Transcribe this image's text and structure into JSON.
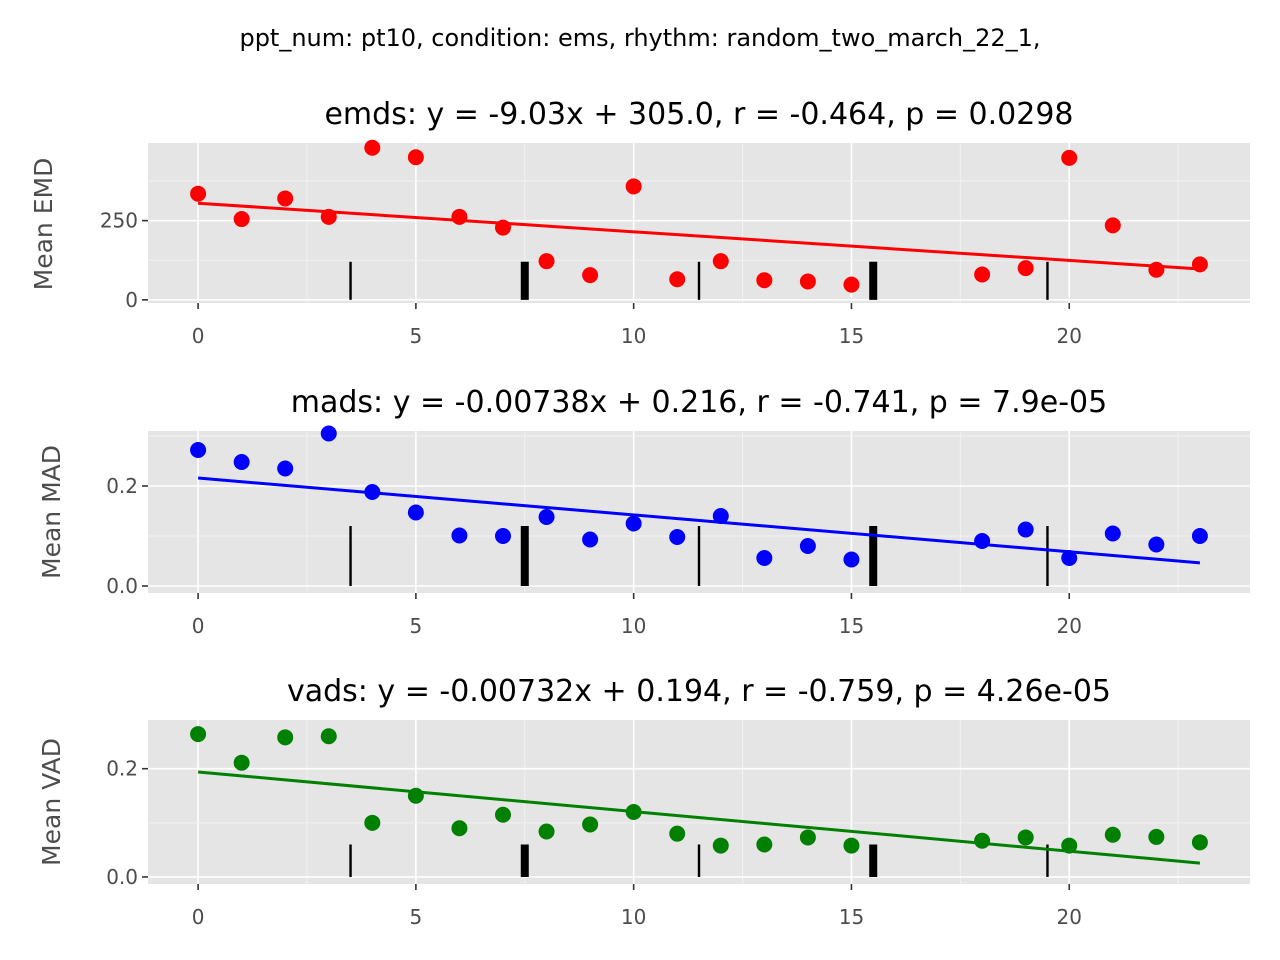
{
  "suptitle": "ppt_num: pt10, condition: ems, rhythm: random_two_march_22_1,",
  "chart_data": [
    {
      "type": "scatter",
      "title": "emds: y = -9.03x + 305.0, r = -0.464, p = 0.0298",
      "ylabel": "Mean EMD",
      "color": "#ff0000",
      "x": [
        0,
        1,
        2,
        3,
        4,
        5,
        6,
        7,
        8,
        9,
        10,
        11,
        12,
        13,
        14,
        15,
        18,
        19,
        20,
        21,
        22,
        23
      ],
      "y": [
        335,
        255,
        320,
        262,
        480,
        450,
        262,
        228,
        122,
        78,
        358,
        65,
        122,
        62,
        58,
        48,
        80,
        100,
        448,
        235,
        95,
        112
      ],
      "fit": {
        "slope": -9.03,
        "intercept": 305.0
      },
      "xlim": [
        -1.15,
        24.15
      ],
      "ylim": [
        -10,
        495
      ],
      "xticks": [
        0,
        5,
        10,
        15,
        20
      ],
      "yticks": [
        0,
        250
      ],
      "ytick_labels": [
        "0",
        "250"
      ],
      "markers": [
        {
          "x": 3.5,
          "height": 120,
          "weight": "thin"
        },
        {
          "x": 7.5,
          "height": 120,
          "weight": "thick"
        },
        {
          "x": 11.5,
          "height": 120,
          "weight": "thin"
        },
        {
          "x": 15.5,
          "height": 120,
          "weight": "thick"
        },
        {
          "x": 19.5,
          "height": 120,
          "weight": "thin"
        }
      ]
    },
    {
      "type": "scatter",
      "title": "mads: y = -0.00738x + 0.216, r = -0.741, p = 7.9e-05",
      "ylabel": "Mean MAD",
      "color": "#0000ff",
      "x": [
        0,
        1,
        2,
        3,
        4,
        5,
        6,
        7,
        8,
        9,
        10,
        11,
        12,
        13,
        14,
        15,
        18,
        19,
        20,
        21,
        22,
        23
      ],
      "y": [
        0.272,
        0.248,
        0.235,
        0.305,
        0.188,
        0.147,
        0.101,
        0.1,
        0.138,
        0.093,
        0.125,
        0.098,
        0.14,
        0.056,
        0.08,
        0.053,
        0.09,
        0.113,
        0.056,
        0.105,
        0.083,
        0.1
      ],
      "fit": {
        "slope": -0.00738,
        "intercept": 0.216
      },
      "xlim": [
        -1.15,
        24.15
      ],
      "ylim": [
        -0.014,
        0.31
      ],
      "xticks": [
        0,
        5,
        10,
        15,
        20
      ],
      "yticks": [
        0,
        0.2
      ],
      "ytick_labels": [
        "0.0",
        "0.2"
      ],
      "markers": [
        {
          "x": 3.5,
          "height": 0.12,
          "weight": "thin"
        },
        {
          "x": 7.5,
          "height": 0.12,
          "weight": "thick"
        },
        {
          "x": 11.5,
          "height": 0.12,
          "weight": "thin"
        },
        {
          "x": 15.5,
          "height": 0.12,
          "weight": "thick"
        },
        {
          "x": 19.5,
          "height": 0.12,
          "weight": "thin"
        }
      ]
    },
    {
      "type": "scatter",
      "title": "vads: y = -0.00732x + 0.194, r = -0.759, p = 4.26e-05",
      "ylabel": "Mean VAD",
      "color": "#008000",
      "x": [
        0,
        1,
        2,
        3,
        4,
        5,
        6,
        7,
        8,
        9,
        10,
        11,
        12,
        13,
        14,
        15,
        18,
        19,
        20,
        21,
        22,
        23
      ],
      "y": [
        0.264,
        0.211,
        0.258,
        0.26,
        0.1,
        0.15,
        0.09,
        0.115,
        0.084,
        0.097,
        0.12,
        0.08,
        0.058,
        0.06,
        0.073,
        0.058,
        0.067,
        0.073,
        0.058,
        0.078,
        0.074,
        0.064
      ],
      "fit": {
        "slope": -0.00732,
        "intercept": 0.194
      },
      "xlim": [
        -1.15,
        24.15
      ],
      "ylim": [
        -0.013,
        0.29
      ],
      "xticks": [
        0,
        5,
        10,
        15,
        20
      ],
      "yticks": [
        0,
        0.2
      ],
      "ytick_labels": [
        "0.0",
        "0.2"
      ],
      "markers": [
        {
          "x": 3.5,
          "height": 0.06,
          "weight": "thin"
        },
        {
          "x": 7.5,
          "height": 0.06,
          "weight": "thick"
        },
        {
          "x": 11.5,
          "height": 0.06,
          "weight": "thin"
        },
        {
          "x": 15.5,
          "height": 0.06,
          "weight": "thick"
        },
        {
          "x": 19.5,
          "height": 0.06,
          "weight": "thin"
        }
      ]
    }
  ]
}
